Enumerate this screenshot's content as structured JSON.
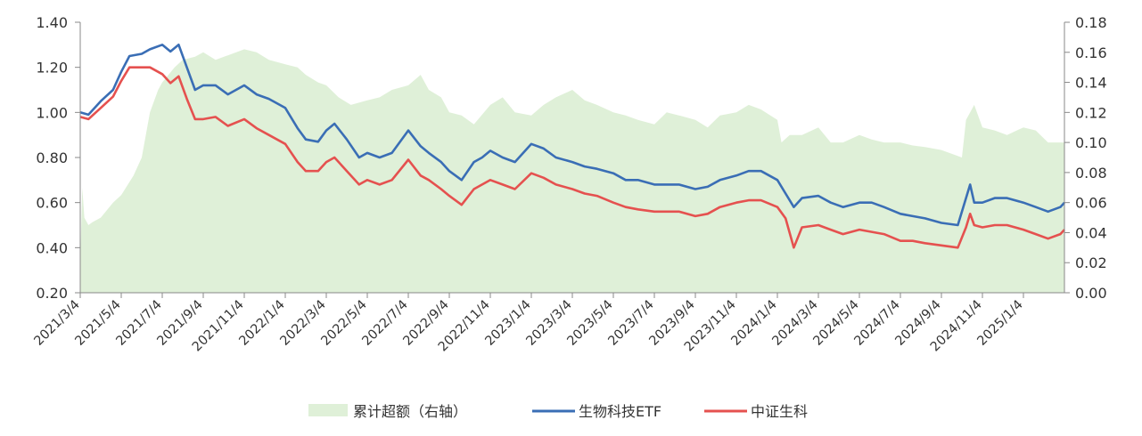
{
  "chart_data": {
    "type": "line",
    "title": "",
    "x_categories": [
      "2021/3/4",
      "2021/5/4",
      "2021/7/4",
      "2021/9/4",
      "2021/11/4",
      "2022/1/4",
      "2022/3/4",
      "2022/5/4",
      "2022/7/4",
      "2022/9/4",
      "2022/11/4",
      "2023/1/4",
      "2023/3/4",
      "2023/5/4",
      "2023/7/4",
      "2023/9/4",
      "2023/11/4",
      "2024/1/4",
      "2024/3/4",
      "2024/5/4",
      "2024/7/4",
      "2024/9/4",
      "2024/11/4",
      "2025/1/4"
    ],
    "y_left": {
      "ticks": [
        "1.40",
        "1.20",
        "1.00",
        "0.80",
        "0.60",
        "0.40",
        "0.20"
      ],
      "ylim": [
        0.2,
        1.4
      ]
    },
    "y_right": {
      "ticks": [
        "0.18",
        "0.16",
        "0.14",
        "0.12",
        "0.10",
        "0.08",
        "0.06",
        "0.04",
        "0.02",
        "0.00"
      ],
      "ylim": [
        0,
        0.18
      ]
    },
    "series": [
      {
        "name": "累计超额（右轴）",
        "kind": "area",
        "axis": "right",
        "color": "#dff0d8",
        "x": [
          0,
          0.05,
          0.1,
          0.2,
          0.3,
          0.5,
          0.8,
          1.0,
          1.3,
          1.5,
          1.7,
          1.9,
          2.0,
          2.3,
          2.5,
          2.8,
          3.0,
          3.3,
          3.6,
          4.0,
          4.3,
          4.6,
          5.0,
          5.3,
          5.5,
          5.8,
          6.0,
          6.3,
          6.6,
          7.0,
          7.3,
          7.6,
          8.0,
          8.3,
          8.5,
          8.8,
          9.0,
          9.3,
          9.6,
          10.0,
          10.3,
          10.6,
          11.0,
          11.3,
          11.6,
          12.0,
          12.3,
          12.6,
          13.0,
          13.3,
          13.6,
          14.0,
          14.3,
          14.6,
          15.0,
          15.3,
          15.6,
          16.0,
          16.3,
          16.6,
          17.0,
          17.1,
          17.3,
          17.6,
          18.0,
          18.3,
          18.6,
          19.0,
          19.3,
          19.6,
          20.0,
          20.3,
          20.6,
          21.0,
          21.3,
          21.5,
          21.6,
          21.8,
          22.0,
          22.3,
          22.6,
          23.0,
          23.3,
          23.6,
          23.9,
          24.0
        ],
        "values": [
          0.02,
          0.07,
          0.05,
          0.045,
          0.047,
          0.05,
          0.06,
          0.065,
          0.078,
          0.09,
          0.12,
          0.135,
          0.14,
          0.15,
          0.155,
          0.157,
          0.16,
          0.155,
          0.158,
          0.162,
          0.16,
          0.155,
          0.152,
          0.15,
          0.145,
          0.14,
          0.138,
          0.13,
          0.125,
          0.128,
          0.13,
          0.135,
          0.138,
          0.145,
          0.135,
          0.13,
          0.12,
          0.118,
          0.112,
          0.125,
          0.13,
          0.12,
          0.118,
          0.125,
          0.13,
          0.135,
          0.128,
          0.125,
          0.12,
          0.118,
          0.115,
          0.112,
          0.12,
          0.118,
          0.115,
          0.11,
          0.118,
          0.12,
          0.125,
          0.122,
          0.115,
          0.1,
          0.105,
          0.105,
          0.11,
          0.1,
          0.1,
          0.105,
          0.102,
          0.1,
          0.1,
          0.098,
          0.097,
          0.095,
          0.092,
          0.09,
          0.115,
          0.125,
          0.11,
          0.108,
          0.105,
          0.11,
          0.108,
          0.1,
          0.1,
          0.1
        ]
      },
      {
        "name": "生物科技ETF",
        "kind": "line",
        "axis": "left",
        "color": "#3a6eb5",
        "x": [
          0,
          0.2,
          0.5,
          0.8,
          1.0,
          1.2,
          1.5,
          1.7,
          2.0,
          2.2,
          2.4,
          2.6,
          2.8,
          3.0,
          3.3,
          3.6,
          4.0,
          4.3,
          4.6,
          5.0,
          5.3,
          5.5,
          5.8,
          6.0,
          6.2,
          6.5,
          6.8,
          7.0,
          7.3,
          7.6,
          8.0,
          8.3,
          8.5,
          8.8,
          9.0,
          9.3,
          9.6,
          9.8,
          10.0,
          10.3,
          10.6,
          11.0,
          11.3,
          11.6,
          12.0,
          12.3,
          12.6,
          13.0,
          13.3,
          13.6,
          14.0,
          14.3,
          14.6,
          15.0,
          15.3,
          15.6,
          16.0,
          16.3,
          16.6,
          17.0,
          17.2,
          17.4,
          17.6,
          18.0,
          18.3,
          18.6,
          19.0,
          19.3,
          19.6,
          20.0,
          20.3,
          20.6,
          21.0,
          21.4,
          21.6,
          21.7,
          21.8,
          22.0,
          22.3,
          22.6,
          23.0,
          23.3,
          23.6,
          23.9,
          24.0
        ],
        "values": [
          1.0,
          0.99,
          1.05,
          1.1,
          1.18,
          1.25,
          1.26,
          1.28,
          1.3,
          1.27,
          1.3,
          1.2,
          1.1,
          1.12,
          1.12,
          1.08,
          1.12,
          1.08,
          1.06,
          1.02,
          0.93,
          0.88,
          0.87,
          0.92,
          0.95,
          0.88,
          0.8,
          0.82,
          0.8,
          0.82,
          0.92,
          0.85,
          0.82,
          0.78,
          0.74,
          0.7,
          0.78,
          0.8,
          0.83,
          0.8,
          0.78,
          0.86,
          0.84,
          0.8,
          0.78,
          0.76,
          0.75,
          0.73,
          0.7,
          0.7,
          0.68,
          0.68,
          0.68,
          0.66,
          0.67,
          0.7,
          0.72,
          0.74,
          0.74,
          0.7,
          0.64,
          0.58,
          0.62,
          0.63,
          0.6,
          0.58,
          0.6,
          0.6,
          0.58,
          0.55,
          0.54,
          0.53,
          0.51,
          0.5,
          0.62,
          0.68,
          0.6,
          0.6,
          0.62,
          0.62,
          0.6,
          0.58,
          0.56,
          0.58,
          0.6
        ]
      },
      {
        "name": "中证生科",
        "kind": "line",
        "axis": "left",
        "color": "#e5514f",
        "x": [
          0,
          0.2,
          0.5,
          0.8,
          1.0,
          1.2,
          1.5,
          1.7,
          2.0,
          2.2,
          2.4,
          2.6,
          2.8,
          3.0,
          3.3,
          3.6,
          4.0,
          4.3,
          4.6,
          5.0,
          5.3,
          5.5,
          5.8,
          6.0,
          6.2,
          6.5,
          6.8,
          7.0,
          7.3,
          7.6,
          8.0,
          8.3,
          8.5,
          8.8,
          9.0,
          9.3,
          9.6,
          9.8,
          10.0,
          10.3,
          10.6,
          11.0,
          11.3,
          11.6,
          12.0,
          12.3,
          12.6,
          13.0,
          13.3,
          13.6,
          14.0,
          14.3,
          14.6,
          15.0,
          15.3,
          15.6,
          16.0,
          16.3,
          16.6,
          17.0,
          17.2,
          17.4,
          17.6,
          18.0,
          18.3,
          18.6,
          19.0,
          19.3,
          19.6,
          20.0,
          20.3,
          20.6,
          21.0,
          21.4,
          21.6,
          21.7,
          21.8,
          22.0,
          22.3,
          22.6,
          23.0,
          23.3,
          23.6,
          23.9,
          24.0
        ],
        "values": [
          0.98,
          0.97,
          1.02,
          1.07,
          1.14,
          1.2,
          1.2,
          1.2,
          1.17,
          1.13,
          1.16,
          1.06,
          0.97,
          0.97,
          0.98,
          0.94,
          0.97,
          0.93,
          0.9,
          0.86,
          0.78,
          0.74,
          0.74,
          0.78,
          0.8,
          0.74,
          0.68,
          0.7,
          0.68,
          0.7,
          0.79,
          0.72,
          0.7,
          0.66,
          0.63,
          0.59,
          0.66,
          0.68,
          0.7,
          0.68,
          0.66,
          0.73,
          0.71,
          0.68,
          0.66,
          0.64,
          0.63,
          0.6,
          0.58,
          0.57,
          0.56,
          0.56,
          0.56,
          0.54,
          0.55,
          0.58,
          0.6,
          0.61,
          0.61,
          0.58,
          0.53,
          0.4,
          0.49,
          0.5,
          0.48,
          0.46,
          0.48,
          0.47,
          0.46,
          0.43,
          0.43,
          0.42,
          0.41,
          0.4,
          0.49,
          0.55,
          0.5,
          0.49,
          0.5,
          0.5,
          0.48,
          0.46,
          0.44,
          0.46,
          0.48
        ]
      }
    ],
    "legend": {
      "position": "bottom-center",
      "items": [
        {
          "label": "累计超额（右轴）",
          "kind": "area",
          "color": "#dff0d8"
        },
        {
          "label": "生物科技ETF",
          "kind": "line",
          "color": "#3a6eb5"
        },
        {
          "label": "中证生科",
          "kind": "line",
          "color": "#e5514f"
        }
      ]
    },
    "grid": false
  }
}
